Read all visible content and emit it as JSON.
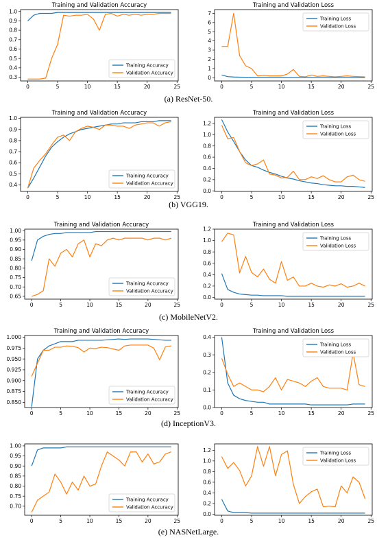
{
  "colors": {
    "training": "#1f77b4",
    "validation": "#ff7f0e"
  },
  "captions": [
    {
      "letter": "(a)",
      "text": "ResNet-50."
    },
    {
      "letter": "(b)",
      "text": "VGG19."
    },
    {
      "letter": "(c)",
      "text": "MobileNetV2."
    },
    {
      "letter": "(d)",
      "text": "InceptionV3."
    },
    {
      "letter": "(e)",
      "text": "NASNetLarge."
    }
  ],
  "chart_data": [
    {
      "type": "line",
      "title": "Training and Validation Accuracy",
      "legend": "lower-right",
      "grid": false,
      "xlim": [
        -1.2,
        25.2
      ],
      "ylim": [
        0.26,
        1.02
      ],
      "xticks": [
        0,
        5,
        10,
        15,
        20,
        25
      ],
      "yticks": [
        0.3,
        0.4,
        0.5,
        0.6,
        0.7,
        0.8,
        0.9,
        1.0
      ],
      "ytick_labels": [
        "0.3",
        "0.4",
        "0.5",
        "0.6",
        "0.7",
        "0.8",
        "0.9",
        "1.0"
      ],
      "series": [
        {
          "name": "Training Accuracy",
          "color_key": "training",
          "values": [
            0.9,
            0.96,
            0.98,
            0.98,
            0.98,
            0.99,
            0.99,
            0.99,
            0.99,
            0.99,
            0.99,
            0.99,
            0.99,
            0.99,
            0.99,
            0.99,
            0.99,
            0.99,
            0.99,
            0.99,
            0.99,
            0.99,
            0.99,
            0.99,
            0.99
          ]
        },
        {
          "name": "Validation Accuracy",
          "color_key": "validation",
          "values": [
            0.28,
            0.28,
            0.28,
            0.29,
            0.5,
            0.65,
            0.96,
            0.95,
            0.96,
            0.96,
            0.97,
            0.92,
            0.8,
            0.97,
            0.98,
            0.95,
            0.97,
            0.96,
            0.97,
            0.96,
            0.97,
            0.97,
            0.98,
            0.98,
            0.98
          ]
        }
      ]
    },
    {
      "type": "line",
      "title": "Training and Validation Loss",
      "legend": "upper-right",
      "grid": false,
      "xlim": [
        -1.2,
        25.2
      ],
      "ylim": [
        -0.35,
        7.4
      ],
      "xticks": [
        0,
        5,
        10,
        15,
        20,
        25
      ],
      "yticks": [
        0,
        1,
        2,
        3,
        4,
        5,
        6,
        7
      ],
      "ytick_labels": [
        "0",
        "1",
        "2",
        "3",
        "4",
        "5",
        "6",
        "7"
      ],
      "series": [
        {
          "name": "Training Loss",
          "color_key": "training",
          "values": [
            0.3,
            0.12,
            0.08,
            0.06,
            0.05,
            0.04,
            0.03,
            0.03,
            0.03,
            0.03,
            0.03,
            0.02,
            0.02,
            0.02,
            0.02,
            0.02,
            0.02,
            0.02,
            0.02,
            0.02,
            0.02,
            0.02,
            0.02,
            0.02,
            0.02
          ]
        },
        {
          "name": "Validation Loss",
          "color_key": "validation",
          "values": [
            3.4,
            3.4,
            7.0,
            2.4,
            1.3,
            1.0,
            0.2,
            0.25,
            0.2,
            0.2,
            0.2,
            0.4,
            0.9,
            0.15,
            0.1,
            0.3,
            0.15,
            0.2,
            0.15,
            0.1,
            0.15,
            0.2,
            0.15,
            0.12,
            0.1
          ]
        }
      ]
    },
    {
      "type": "line",
      "title": "Training and Validation Accuracy",
      "legend": "lower-right",
      "grid": false,
      "xlim": [
        -1.2,
        25.2
      ],
      "ylim": [
        0.34,
        1.01
      ],
      "xticks": [
        0,
        5,
        10,
        15,
        20,
        25
      ],
      "yticks": [
        0.4,
        0.5,
        0.6,
        0.7,
        0.8,
        0.9,
        1.0
      ],
      "ytick_labels": [
        "0.4",
        "0.5",
        "0.6",
        "0.7",
        "0.8",
        "0.9",
        "1.0"
      ],
      "series": [
        {
          "name": "Training Accuracy",
          "color_key": "training",
          "values": [
            0.37,
            0.46,
            0.56,
            0.66,
            0.74,
            0.79,
            0.83,
            0.86,
            0.88,
            0.9,
            0.91,
            0.92,
            0.93,
            0.94,
            0.95,
            0.95,
            0.96,
            0.96,
            0.96,
            0.97,
            0.97,
            0.97,
            0.98,
            0.98,
            0.98
          ]
        },
        {
          "name": "Validation Accuracy",
          "color_key": "validation",
          "values": [
            0.37,
            0.55,
            0.62,
            0.68,
            0.76,
            0.83,
            0.85,
            0.8,
            0.88,
            0.91,
            0.93,
            0.92,
            0.9,
            0.94,
            0.94,
            0.93,
            0.93,
            0.91,
            0.94,
            0.95,
            0.96,
            0.96,
            0.93,
            0.96,
            0.97
          ]
        }
      ]
    },
    {
      "type": "line",
      "title": "Training and Validation Loss",
      "legend": "upper-right",
      "grid": false,
      "xlim": [
        -1.2,
        25.2
      ],
      "ylim": [
        -0.01,
        1.31
      ],
      "xticks": [
        0,
        5,
        10,
        15,
        20,
        25
      ],
      "yticks": [
        0.0,
        0.2,
        0.4,
        0.6,
        0.8,
        1.0,
        1.2
      ],
      "ytick_labels": [
        "0.0",
        "0.2",
        "0.4",
        "0.6",
        "0.8",
        "1.0",
        "1.2"
      ],
      "series": [
        {
          "name": "Training Loss",
          "color_key": "training",
          "values": [
            1.27,
            1.05,
            0.88,
            0.7,
            0.55,
            0.45,
            0.42,
            0.37,
            0.33,
            0.3,
            0.26,
            0.23,
            0.21,
            0.18,
            0.16,
            0.14,
            0.13,
            0.11,
            0.1,
            0.09,
            0.09,
            0.08,
            0.08,
            0.07,
            0.06
          ]
        },
        {
          "name": "Validation Loss",
          "color_key": "validation",
          "values": [
            1.17,
            0.93,
            0.95,
            0.7,
            0.5,
            0.45,
            0.48,
            0.55,
            0.3,
            0.28,
            0.23,
            0.24,
            0.35,
            0.2,
            0.2,
            0.25,
            0.22,
            0.27,
            0.2,
            0.16,
            0.16,
            0.25,
            0.28,
            0.2,
            0.17
          ]
        }
      ]
    },
    {
      "type": "line",
      "title": "Training and Validation Accuracy",
      "legend": "lower-right",
      "grid": false,
      "xlim": [
        -1.2,
        25.2
      ],
      "ylim": [
        0.635,
        1.008
      ],
      "xticks": [
        0,
        5,
        10,
        15,
        20,
        25
      ],
      "yticks": [
        0.65,
        0.7,
        0.75,
        0.8,
        0.85,
        0.9,
        0.95,
        1.0
      ],
      "ytick_labels": [
        "0.65",
        "0.70",
        "0.75",
        "0.80",
        "0.85",
        "0.90",
        "0.95",
        "1.00"
      ],
      "series": [
        {
          "name": "Training Accuracy",
          "color_key": "training",
          "values": [
            0.84,
            0.95,
            0.97,
            0.98,
            0.985,
            0.985,
            0.99,
            0.99,
            0.99,
            0.99,
            0.99,
            0.995,
            0.995,
            0.995,
            0.995,
            0.995,
            0.995,
            0.995,
            0.995,
            0.995,
            0.995,
            0.995,
            0.995,
            0.995,
            0.995
          ]
        },
        {
          "name": "Validation Accuracy",
          "color_key": "validation",
          "values": [
            0.65,
            0.66,
            0.68,
            0.85,
            0.81,
            0.88,
            0.9,
            0.86,
            0.93,
            0.95,
            0.86,
            0.93,
            0.92,
            0.95,
            0.96,
            0.95,
            0.96,
            0.96,
            0.96,
            0.96,
            0.95,
            0.96,
            0.96,
            0.95,
            0.96
          ]
        }
      ]
    },
    {
      "type": "line",
      "title": "Training and Validation Loss",
      "legend": "upper-right",
      "grid": false,
      "xlim": [
        -1.2,
        25.2
      ],
      "ylim": [
        -0.03,
        1.2
      ],
      "xticks": [
        0,
        5,
        10,
        15,
        20,
        25
      ],
      "yticks": [
        0.0,
        0.2,
        0.4,
        0.6,
        0.8,
        1.0,
        1.2
      ],
      "ytick_labels": [
        "0.0",
        "0.2",
        "0.4",
        "0.6",
        "0.8",
        "1.0",
        "1.2"
      ],
      "series": [
        {
          "name": "Training Loss",
          "color_key": "training",
          "values": [
            0.42,
            0.14,
            0.09,
            0.06,
            0.05,
            0.04,
            0.04,
            0.03,
            0.03,
            0.03,
            0.03,
            0.02,
            0.02,
            0.02,
            0.02,
            0.02,
            0.02,
            0.02,
            0.02,
            0.02,
            0.02,
            0.02,
            0.02,
            0.02,
            0.02
          ]
        },
        {
          "name": "Validation Loss",
          "color_key": "validation",
          "values": [
            0.98,
            1.13,
            1.1,
            0.43,
            0.72,
            0.44,
            0.36,
            0.5,
            0.32,
            0.25,
            0.63,
            0.3,
            0.36,
            0.2,
            0.2,
            0.25,
            0.2,
            0.18,
            0.22,
            0.2,
            0.24,
            0.18,
            0.2,
            0.25,
            0.2
          ]
        }
      ]
    },
    {
      "type": "line",
      "title": "Training and Validation Accuracy",
      "legend": "lower-right",
      "grid": false,
      "xlim": [
        -1.2,
        25.2
      ],
      "ylim": [
        0.838,
        1.004
      ],
      "xticks": [
        0,
        5,
        10,
        15,
        20,
        25
      ],
      "yticks": [
        0.85,
        0.875,
        0.9,
        0.925,
        0.95,
        0.975,
        1.0
      ],
      "ytick_labels": [
        "0.850",
        "0.875",
        "0.900",
        "0.925",
        "0.950",
        "0.975",
        "1.000"
      ],
      "series": [
        {
          "name": "Training Accuracy",
          "color_key": "training",
          "values": [
            0.84,
            0.95,
            0.97,
            0.98,
            0.985,
            0.99,
            0.99,
            0.99,
            0.993,
            0.993,
            0.993,
            0.993,
            0.993,
            0.994,
            0.995,
            0.996,
            0.995,
            0.996,
            0.996,
            0.996,
            0.996,
            0.995,
            0.994,
            0.993,
            0.993
          ]
        },
        {
          "name": "Validation Accuracy",
          "color_key": "validation",
          "values": [
            0.91,
            0.94,
            0.97,
            0.97,
            0.977,
            0.977,
            0.98,
            0.979,
            0.976,
            0.966,
            0.975,
            0.974,
            0.977,
            0.976,
            0.973,
            0.97,
            0.98,
            0.982,
            0.982,
            0.982,
            0.982,
            0.975,
            0.948,
            0.978,
            0.98
          ]
        }
      ]
    },
    {
      "type": "line",
      "title": "Training and Validation Loss",
      "legend": "upper-right",
      "grid": false,
      "xlim": [
        -1.2,
        25.2
      ],
      "ylim": [
        0.0,
        0.41
      ],
      "xticks": [
        0,
        5,
        10,
        15,
        20,
        25
      ],
      "yticks": [
        0.0,
        0.1,
        0.2,
        0.3,
        0.4
      ],
      "ytick_labels": [
        "0.0",
        "0.1",
        "0.2",
        "0.3",
        "0.4"
      ],
      "series": [
        {
          "name": "Training Loss",
          "color_key": "training",
          "values": [
            0.4,
            0.14,
            0.07,
            0.05,
            0.04,
            0.035,
            0.03,
            0.03,
            0.02,
            0.02,
            0.02,
            0.02,
            0.02,
            0.02,
            0.02,
            0.015,
            0.015,
            0.015,
            0.015,
            0.015,
            0.015,
            0.015,
            0.02,
            0.02,
            0.02
          ]
        },
        {
          "name": "Validation Loss",
          "color_key": "validation",
          "values": [
            0.28,
            0.19,
            0.12,
            0.14,
            0.12,
            0.1,
            0.1,
            0.09,
            0.12,
            0.17,
            0.1,
            0.16,
            0.15,
            0.14,
            0.12,
            0.15,
            0.17,
            0.12,
            0.11,
            0.11,
            0.11,
            0.1,
            0.31,
            0.13,
            0.12
          ]
        }
      ]
    },
    {
      "type": "line",
      "title": "",
      "legend": "lower-right",
      "grid": false,
      "xlim": [
        -1.2,
        25.2
      ],
      "ylim": [
        0.655,
        1.01
      ],
      "xticks": [
        0,
        5,
        10,
        15,
        20,
        25
      ],
      "yticks": [
        0.7,
        0.75,
        0.8,
        0.85,
        0.9,
        0.95,
        1.0
      ],
      "ytick_labels": [
        "0.70",
        "0.75",
        "0.80",
        "0.85",
        "0.90",
        "0.95",
        "1.00"
      ],
      "series": [
        {
          "name": "Training Accuracy",
          "color_key": "training",
          "values": [
            0.9,
            0.98,
            0.99,
            0.99,
            0.99,
            0.99,
            0.995,
            0.995,
            0.995,
            0.995,
            0.995,
            0.995,
            0.995,
            0.995,
            0.995,
            0.995,
            0.995,
            0.995,
            0.995,
            0.995,
            0.995,
            0.995,
            0.995,
            0.995,
            0.995
          ]
        },
        {
          "name": "Validation Accuracy",
          "color_key": "validation",
          "values": [
            0.67,
            0.73,
            0.75,
            0.77,
            0.86,
            0.82,
            0.76,
            0.82,
            0.78,
            0.85,
            0.8,
            0.81,
            0.9,
            0.97,
            0.95,
            0.93,
            0.9,
            0.97,
            0.97,
            0.92,
            0.96,
            0.91,
            0.92,
            0.96,
            0.97
          ]
        }
      ]
    },
    {
      "type": "line",
      "title": "",
      "legend": "upper-right",
      "grid": false,
      "xlim": [
        -1.2,
        25.2
      ],
      "ylim": [
        -0.02,
        1.32
      ],
      "xticks": [
        0,
        5,
        10,
        15,
        20,
        25
      ],
      "yticks": [
        0.0,
        0.2,
        0.4,
        0.6,
        0.8,
        1.0,
        1.2
      ],
      "ytick_labels": [
        "0.0",
        "0.2",
        "0.4",
        "0.6",
        "0.8",
        "1.0",
        "1.2"
      ],
      "series": [
        {
          "name": "Training Loss",
          "color_key": "training",
          "values": [
            0.28,
            0.06,
            0.03,
            0.03,
            0.03,
            0.02,
            0.02,
            0.02,
            0.02,
            0.02,
            0.02,
            0.02,
            0.02,
            0.02,
            0.02,
            0.02,
            0.02,
            0.02,
            0.02,
            0.02,
            0.02,
            0.02,
            0.02,
            0.02,
            0.02
          ]
        },
        {
          "name": "Validation Loss",
          "color_key": "validation",
          "values": [
            1.08,
            0.86,
            0.97,
            0.82,
            0.53,
            0.72,
            1.27,
            0.9,
            1.27,
            0.72,
            1.12,
            1.19,
            0.56,
            0.2,
            0.33,
            0.42,
            0.47,
            0.14,
            0.15,
            0.14,
            0.53,
            0.4,
            0.7,
            0.6,
            0.29
          ]
        }
      ]
    }
  ]
}
